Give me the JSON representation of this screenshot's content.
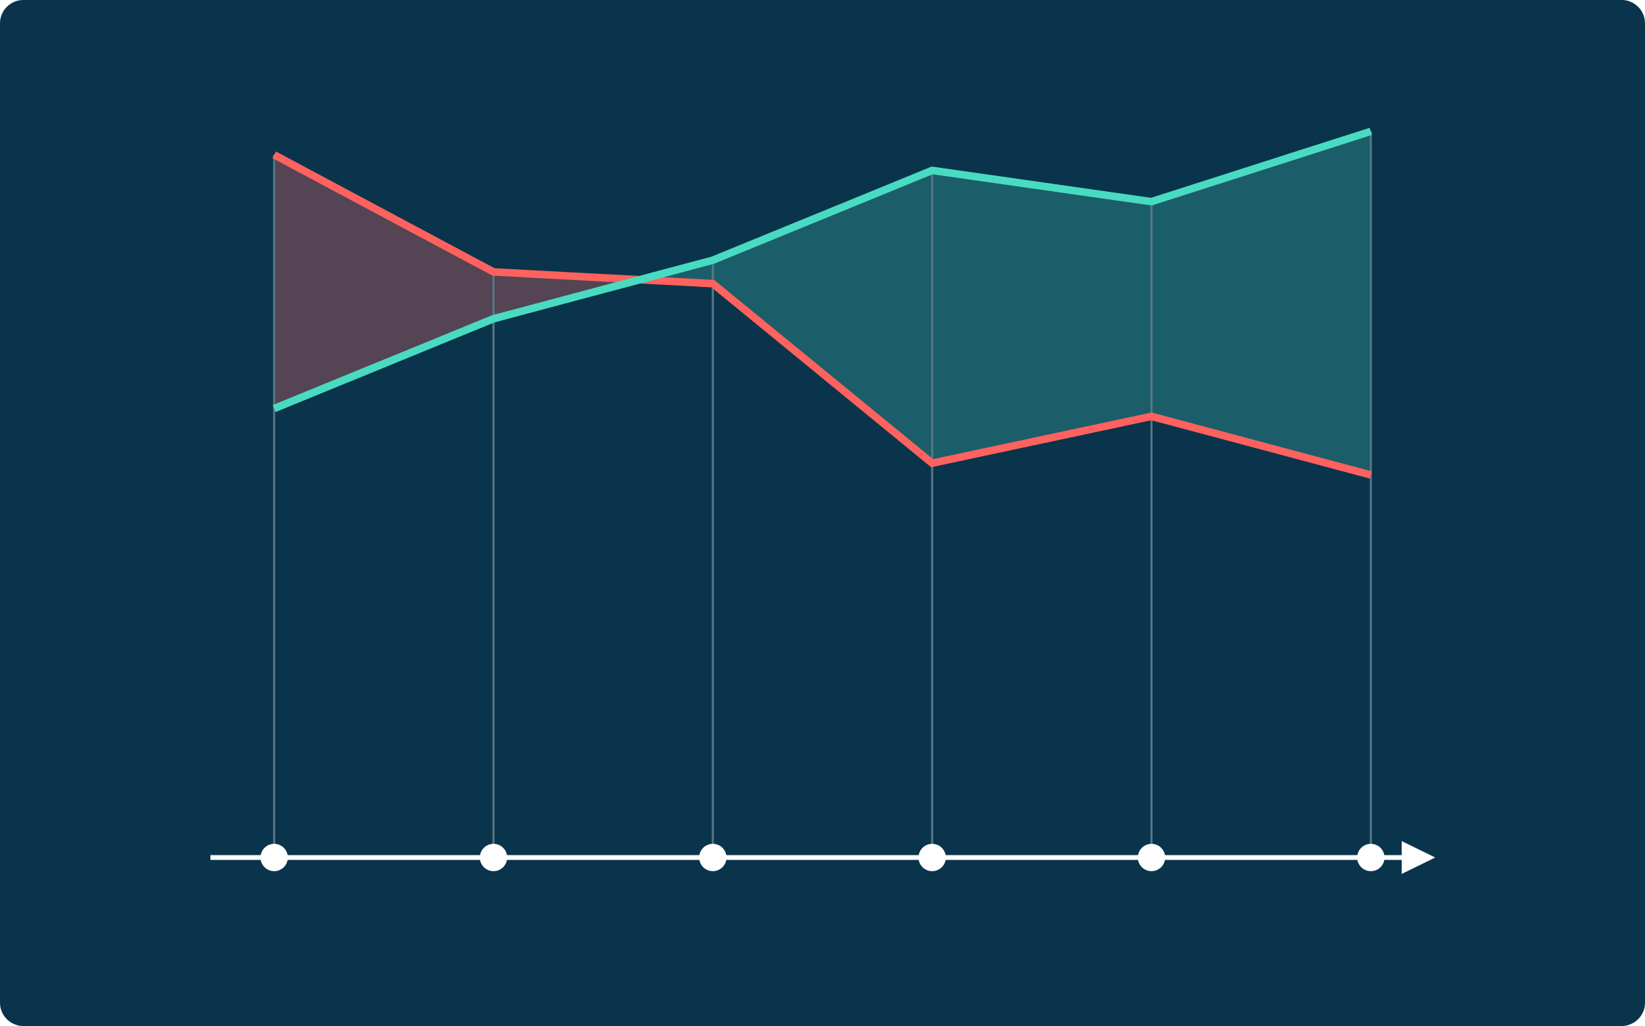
{
  "colors": {
    "background": "#09344b",
    "series_a": "#fe625e",
    "series_b": "#49dbc1",
    "fill_a_above": "#544454",
    "fill_b_above": "#1b5e69",
    "axis": "#ffffff",
    "guide_line": "#5a7886"
  },
  "chart_data": {
    "type": "line",
    "x": [
      1,
      2,
      3,
      4,
      5,
      6
    ],
    "series": [
      {
        "values": [
          90,
          75,
          73.5,
          50.5,
          56.5,
          49
        ]
      },
      {
        "values": [
          57.5,
          69,
          76.5,
          88,
          84,
          93
        ]
      }
    ],
    "ylim": [
      0,
      100
    ],
    "xlim": [
      0.713,
      6.306
    ],
    "grid": false,
    "legend": "none",
    "fill_between": true,
    "x_markers": "circle"
  }
}
